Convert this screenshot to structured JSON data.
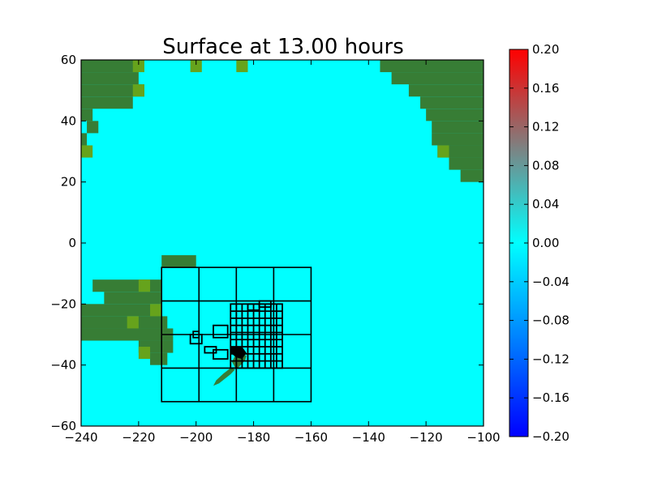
{
  "chart_data": {
    "type": "heatmap",
    "title": "Surface at 13.00 hours",
    "xlabel": "",
    "ylabel": "",
    "xlim": [
      -240,
      -100
    ],
    "ylim": [
      -60,
      60
    ],
    "xticks": [
      -240,
      -220,
      -200,
      -180,
      -160,
      -140,
      -120,
      -100
    ],
    "yticks": [
      -60,
      -40,
      -20,
      0,
      20,
      40,
      60
    ],
    "xtick_labels": [
      "−240",
      "−220",
      "−200",
      "−180",
      "−160",
      "−140",
      "−120",
      "−100"
    ],
    "ytick_labels": [
      "−60",
      "−40",
      "−20",
      "0",
      "20",
      "40",
      "60"
    ],
    "colorbar": {
      "range": [
        -0.2,
        0.2
      ],
      "ticks": [
        0.2,
        0.16,
        0.12,
        0.08,
        0.04,
        0.0,
        -0.04,
        -0.08,
        -0.12,
        -0.16,
        -0.2
      ],
      "tick_labels": [
        "0.20",
        "0.16",
        "0.12",
        "0.08",
        "0.04",
        "0.00",
        "−0.04",
        "−0.08",
        "−0.12",
        "−0.16",
        "−0.20"
      ],
      "colors": [
        "#0000ff",
        "#00ffff",
        "#ff0000"
      ]
    },
    "ocean_color": "#00ffff",
    "land_color": "#377d35",
    "shallow_land_color": "#66a31c",
    "land_regions": [
      {
        "name": "north-west-landmass",
        "x": [
          -240,
          -212
        ],
        "y": [
          40,
          60
        ]
      },
      {
        "name": "north-east-landmass",
        "x": [
          -130,
          -100
        ],
        "y": [
          20,
          60
        ]
      },
      {
        "name": "australia-landmass",
        "x": [
          -240,
          -208
        ],
        "y": [
          -40,
          -5
        ]
      },
      {
        "name": "new-zealand-north-island",
        "x": [
          -188,
          -182
        ],
        "y": [
          -42,
          -34
        ]
      },
      {
        "name": "new-zealand-south-island",
        "x": [
          -194,
          -186
        ],
        "y": [
          -47,
          -38
        ]
      }
    ],
    "grid_patches": [
      {
        "level": 1,
        "x": [
          -212,
          -160
        ],
        "y": [
          -52,
          -8
        ],
        "nx": 4,
        "ny": 4
      },
      {
        "level": 2,
        "x": [
          -188,
          -170
        ],
        "y": [
          -41,
          -20
        ],
        "nx": 9,
        "ny": 9
      }
    ]
  }
}
